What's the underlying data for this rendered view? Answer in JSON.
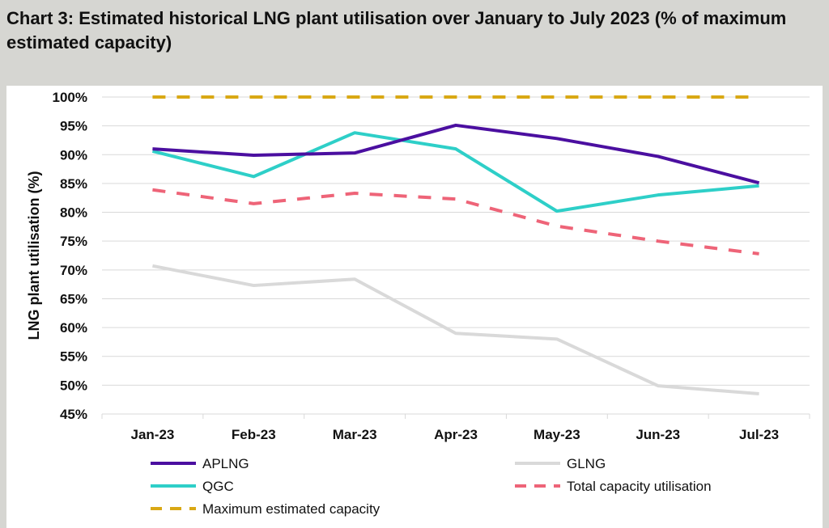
{
  "chart_data": {
    "type": "line",
    "title": "Chart 3: Estimated historical LNG plant utilisation over January to July 2023 (% of maximum estimated capacity)",
    "xlabel": "",
    "ylabel": "LNG plant utilisation (%)",
    "ylim": [
      45,
      100
    ],
    "yticks": [
      "45%",
      "50%",
      "55%",
      "60%",
      "65%",
      "70%",
      "75%",
      "80%",
      "85%",
      "90%",
      "95%",
      "100%"
    ],
    "categories": [
      "Jan-23",
      "Feb-23",
      "Mar-23",
      "Apr-23",
      "May-23",
      "Jun-23",
      "Jul-23"
    ],
    "grid": "horizontal",
    "legend_position": "bottom",
    "series": [
      {
        "name": "APLNG",
        "color": "#4b0fa0",
        "dash": false,
        "values": [
          91.0,
          89.9,
          90.3,
          95.1,
          92.8,
          89.7,
          85.1
        ]
      },
      {
        "name": "GLNG",
        "color": "#d9d9d9",
        "dash": false,
        "values": [
          70.7,
          67.3,
          68.4,
          59.0,
          58.0,
          49.9,
          48.5
        ]
      },
      {
        "name": "QGC",
        "color": "#2ecfc8",
        "dash": false,
        "values": [
          90.6,
          86.2,
          93.8,
          91.0,
          80.2,
          83.0,
          84.6
        ]
      },
      {
        "name": "Total capacity utilisation",
        "color": "#ee6478",
        "dash": true,
        "values": [
          83.9,
          81.5,
          83.3,
          82.3,
          77.6,
          75.0,
          72.8
        ]
      },
      {
        "name": "Maximum estimated capacity",
        "color": "#d9a814",
        "dash": true,
        "values": [
          100,
          100,
          100,
          100,
          100,
          100,
          100
        ]
      }
    ]
  }
}
